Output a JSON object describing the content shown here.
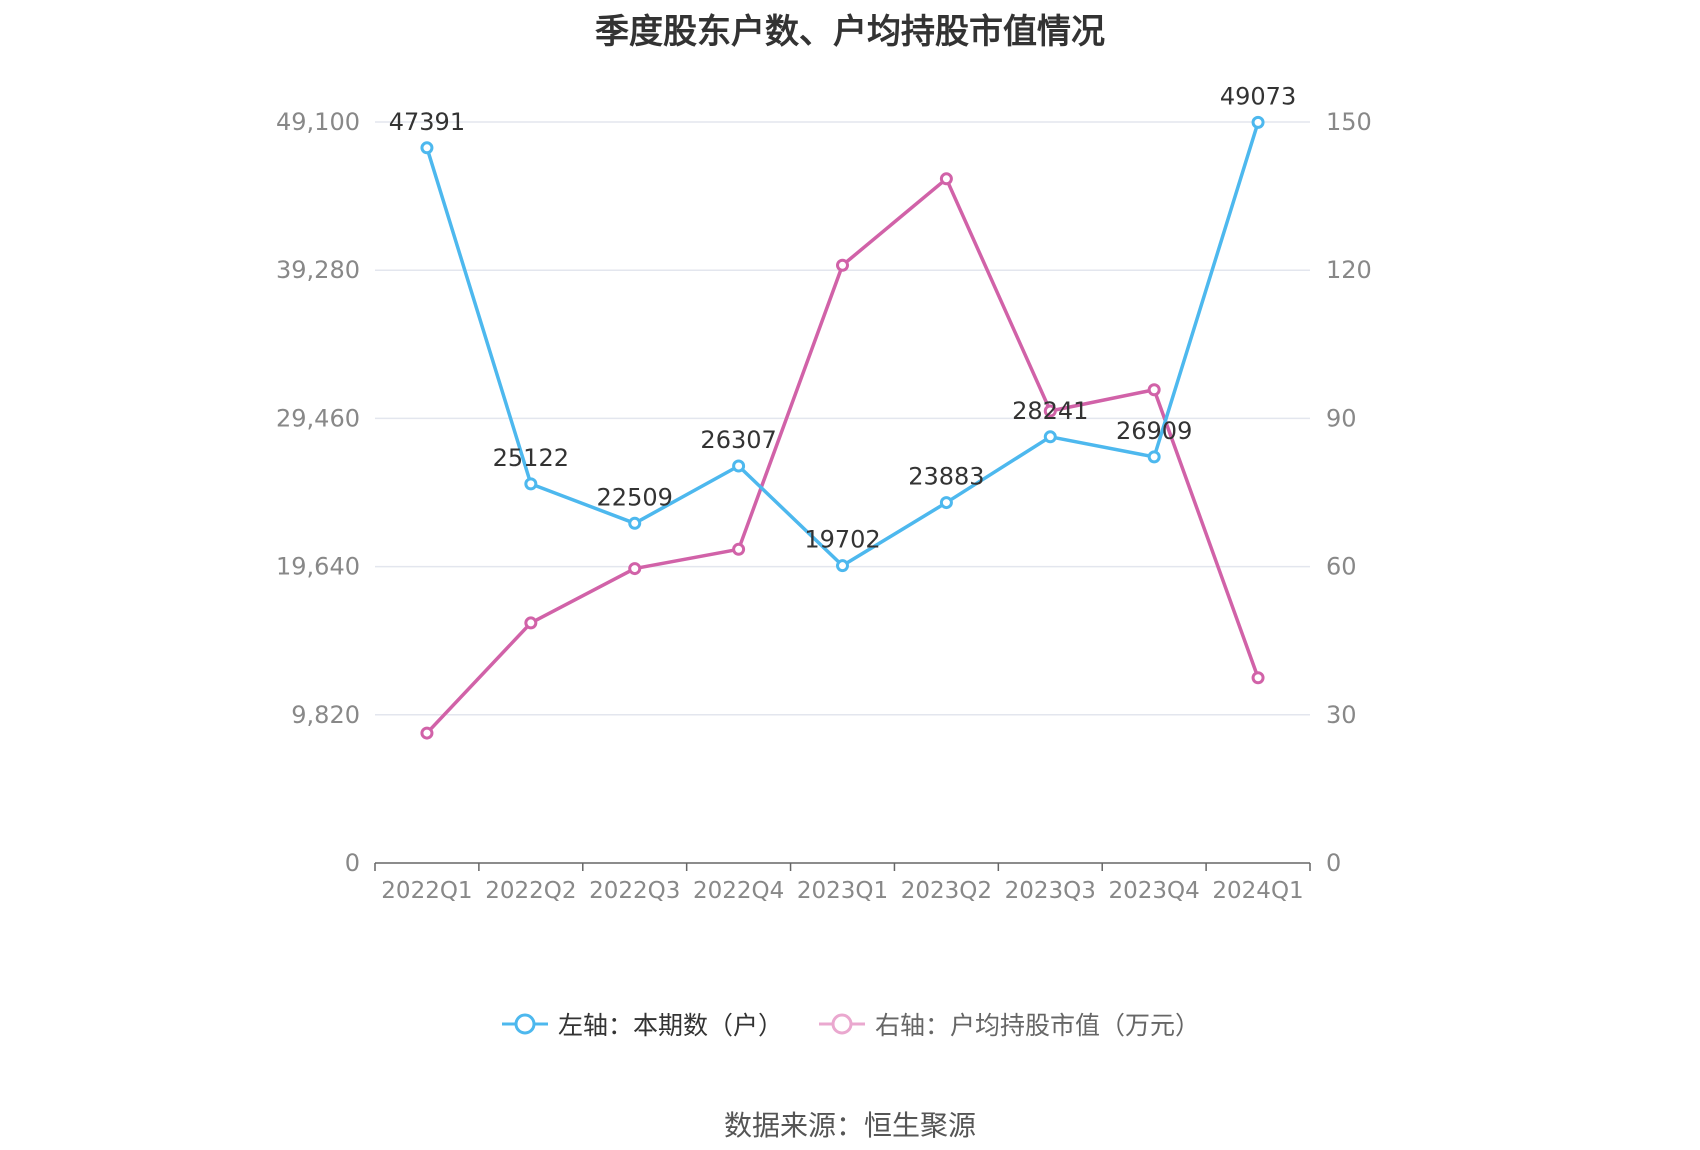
{
  "chart_data": {
    "type": "line",
    "title": "季度股东户数、户均持股市值情况",
    "categories": [
      "2022Q1",
      "2022Q2",
      "2022Q3",
      "2022Q4",
      "2023Q1",
      "2023Q2",
      "2023Q3",
      "2023Q4",
      "2024Q1"
    ],
    "left_axis": {
      "ylim": [
        0,
        49100
      ],
      "ticks": [
        0,
        9820,
        19640,
        29460,
        39280,
        49100
      ],
      "tick_labels": [
        "0",
        "9,820",
        "19,640",
        "29,460",
        "39,280",
        "49,100"
      ]
    },
    "right_axis": {
      "ylim": [
        0,
        150
      ],
      "ticks": [
        0,
        30,
        60,
        90,
        120,
        150
      ],
      "tick_labels": [
        "0",
        "30",
        "60",
        "90",
        "120",
        "150"
      ]
    },
    "series": [
      {
        "name": "左轴：本期数（户）",
        "axis": "left",
        "color": "#4db8ee",
        "values": [
          47391,
          25122,
          22509,
          26307,
          19702,
          23883,
          28241,
          26909,
          49073
        ],
        "labels": [
          "47391",
          "25122",
          "22509",
          "26307",
          "19702",
          "23883",
          "28241",
          "26909",
          "49073"
        ]
      },
      {
        "name": "右轴：户均持股市值（万元）",
        "axis": "right",
        "color": "#d162a8",
        "values": [
          26.3,
          48.6,
          59.6,
          63.5,
          121.0,
          138.5,
          91.5,
          95.8,
          37.5
        ]
      }
    ],
    "grid": true,
    "legend_position": "bottom"
  },
  "legend": {
    "left_label": "左轴：本期数（户）",
    "right_label": "右轴：户均持股市值（万元）"
  },
  "source": "数据来源：恒生聚源"
}
